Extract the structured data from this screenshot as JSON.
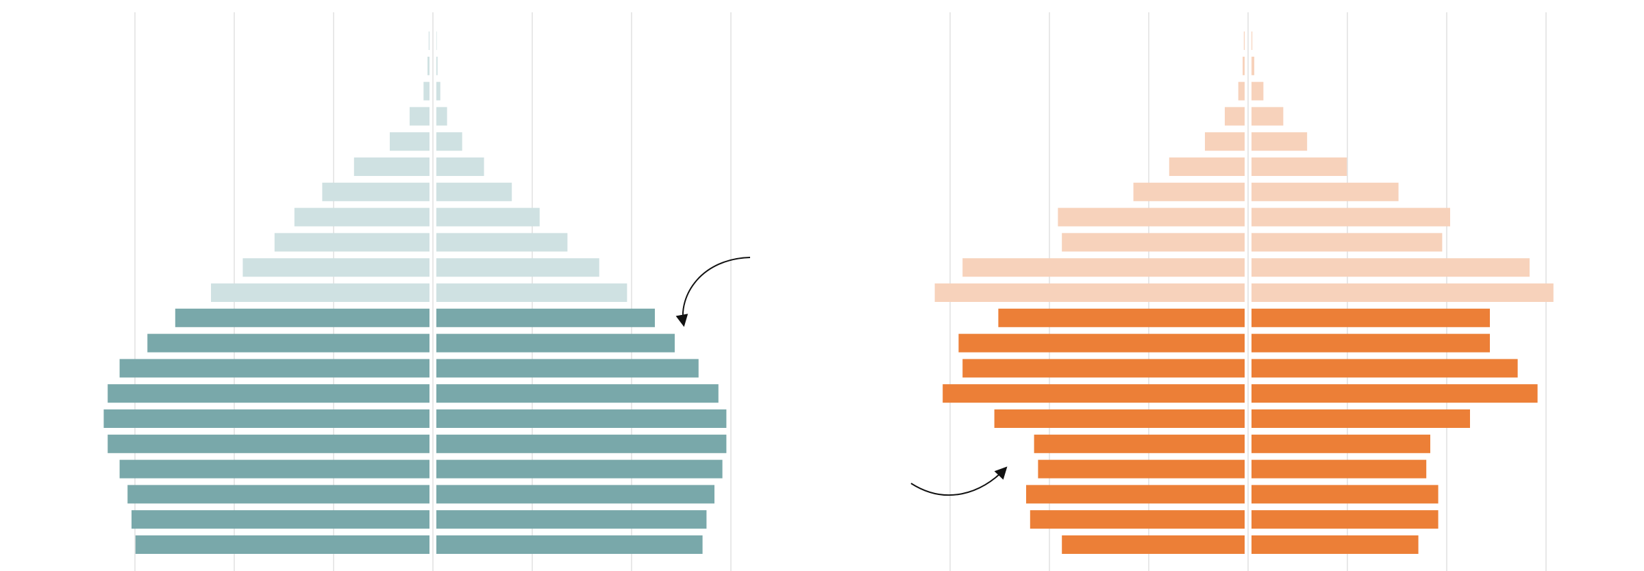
{
  "chart_data": [
    {
      "type": "bar",
      "orientation": "horizontal",
      "layout": "population-pyramid",
      "panel": "left",
      "age_groups_bottom_to_top": 21,
      "left_values": [
        7.4,
        7.5,
        7.6,
        7.8,
        8.1,
        8.2,
        8.1,
        7.8,
        7.1,
        6.4,
        5.5,
        4.7,
        3.9,
        3.4,
        2.7,
        1.9,
        1.0,
        0.5,
        0.15,
        0.05,
        0.02
      ],
      "right_values": [
        6.7,
        6.8,
        7.0,
        7.2,
        7.3,
        7.3,
        7.1,
        6.6,
        6.0,
        5.5,
        4.8,
        4.1,
        3.3,
        2.6,
        1.9,
        1.2,
        0.65,
        0.27,
        0.1,
        0.03,
        0.01
      ],
      "highlight_count": 10,
      "xlim": [
        -8,
        8
      ],
      "grid_step": 2.5,
      "colors": {
        "highlight": "#79a8aa",
        "faded": "#cfe1e2"
      },
      "grid": true
    },
    {
      "type": "bar",
      "orientation": "horizontal",
      "layout": "population-pyramid",
      "panel": "right",
      "age_groups_bottom_to_top": 21,
      "left_values": [
        4.6,
        5.4,
        5.5,
        5.2,
        5.3,
        6.3,
        7.6,
        7.1,
        7.2,
        6.2,
        7.8,
        7.1,
        4.6,
        4.7,
        2.8,
        1.9,
        1.0,
        0.5,
        0.16,
        0.05,
        0.02
      ],
      "right_values": [
        4.2,
        4.7,
        4.7,
        4.4,
        4.5,
        5.5,
        7.2,
        6.7,
        6.0,
        6.0,
        7.6,
        7.0,
        4.8,
        5.0,
        3.7,
        2.4,
        1.4,
        0.8,
        0.3,
        0.07,
        0.02
      ],
      "highlight_count": 10,
      "xlim": [
        -8,
        8
      ],
      "grid_step": 2.5,
      "colors": {
        "highlight": "#ec7f37",
        "faded": "#f7d2bb"
      },
      "grid": true
    }
  ],
  "annotations": [
    {
      "name": "left-panel-callout-arrow",
      "panel": "left"
    },
    {
      "name": "right-panel-callout-arrow",
      "panel": "right"
    }
  ]
}
